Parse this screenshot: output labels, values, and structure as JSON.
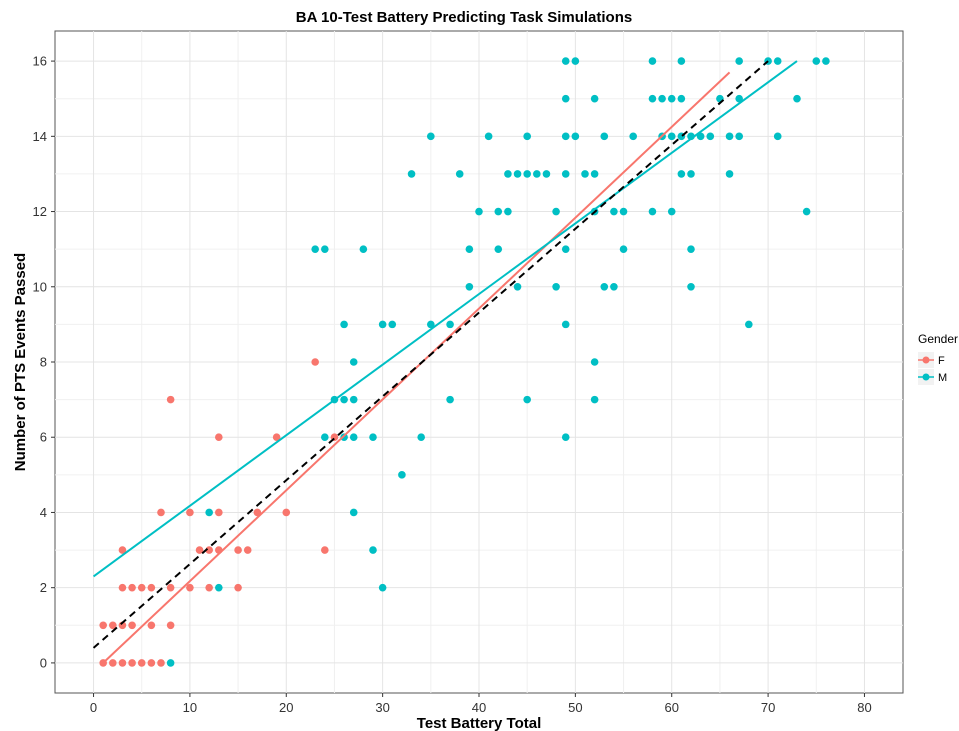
{
  "chart_data": {
    "type": "scatter",
    "title": "BA 10-Test Battery Predicting Task Simulations",
    "xlabel": "Test Battery Total",
    "ylabel": "Number of PTS Events Passed",
    "xlim": [
      -4,
      84
    ],
    "ylim": [
      -0.8,
      16.8
    ],
    "x_ticks": [
      0,
      10,
      20,
      30,
      40,
      50,
      60,
      70,
      80
    ],
    "y_ticks": [
      0,
      2,
      4,
      6,
      8,
      10,
      12,
      14,
      16
    ],
    "grid": true,
    "legend": {
      "title": "Gender",
      "position": "right"
    },
    "series": [
      {
        "name": "F",
        "color": "#F8766D",
        "points": [
          [
            1,
            0
          ],
          [
            2,
            0
          ],
          [
            3,
            0
          ],
          [
            4,
            0
          ],
          [
            5,
            0
          ],
          [
            6,
            0
          ],
          [
            7,
            0
          ],
          [
            1,
            1
          ],
          [
            2,
            1
          ],
          [
            3,
            1
          ],
          [
            4,
            1
          ],
          [
            6,
            1
          ],
          [
            8,
            1
          ],
          [
            3,
            2
          ],
          [
            4,
            2
          ],
          [
            5,
            2
          ],
          [
            6,
            2
          ],
          [
            8,
            2
          ],
          [
            10,
            2
          ],
          [
            12,
            2
          ],
          [
            15,
            2
          ],
          [
            3,
            3
          ],
          [
            11,
            3
          ],
          [
            12,
            3
          ],
          [
            13,
            3
          ],
          [
            15,
            3
          ],
          [
            16,
            3
          ],
          [
            24,
            3
          ],
          [
            7,
            4
          ],
          [
            10,
            4
          ],
          [
            13,
            4
          ],
          [
            17,
            4
          ],
          [
            20,
            4
          ],
          [
            13,
            6
          ],
          [
            19,
            6
          ],
          [
            25,
            6
          ],
          [
            8,
            7
          ],
          [
            23,
            8
          ]
        ],
        "fit_line": [
          [
            1,
            0
          ],
          [
            66,
            15.7
          ]
        ]
      },
      {
        "name": "M",
        "color": "#00BFC4",
        "points": [
          [
            8,
            0
          ],
          [
            13,
            2
          ],
          [
            30,
            2
          ],
          [
            29,
            3
          ],
          [
            12,
            4
          ],
          [
            27,
            4
          ],
          [
            32,
            5
          ],
          [
            24,
            6
          ],
          [
            26,
            6
          ],
          [
            27,
            6
          ],
          [
            29,
            6
          ],
          [
            34,
            6
          ],
          [
            49,
            6
          ],
          [
            25,
            7
          ],
          [
            26,
            7
          ],
          [
            27,
            7
          ],
          [
            37,
            7
          ],
          [
            45,
            7
          ],
          [
            52,
            7
          ],
          [
            27,
            8
          ],
          [
            52,
            8
          ],
          [
            26,
            9
          ],
          [
            30,
            9
          ],
          [
            31,
            9
          ],
          [
            35,
            9
          ],
          [
            37,
            9
          ],
          [
            49,
            9
          ],
          [
            68,
            9
          ],
          [
            39,
            10
          ],
          [
            44,
            10
          ],
          [
            48,
            10
          ],
          [
            53,
            10
          ],
          [
            54,
            10
          ],
          [
            62,
            10
          ],
          [
            23,
            11
          ],
          [
            24,
            11
          ],
          [
            28,
            11
          ],
          [
            39,
            11
          ],
          [
            42,
            11
          ],
          [
            49,
            11
          ],
          [
            55,
            11
          ],
          [
            62,
            11
          ],
          [
            40,
            12
          ],
          [
            42,
            12
          ],
          [
            43,
            12
          ],
          [
            48,
            12
          ],
          [
            52,
            12
          ],
          [
            54,
            12
          ],
          [
            55,
            12
          ],
          [
            58,
            12
          ],
          [
            60,
            12
          ],
          [
            74,
            12
          ],
          [
            33,
            13
          ],
          [
            38,
            13
          ],
          [
            43,
            13
          ],
          [
            44,
            13
          ],
          [
            45,
            13
          ],
          [
            46,
            13
          ],
          [
            47,
            13
          ],
          [
            49,
            13
          ],
          [
            51,
            13
          ],
          [
            52,
            13
          ],
          [
            61,
            13
          ],
          [
            62,
            13
          ],
          [
            66,
            13
          ],
          [
            35,
            14
          ],
          [
            41,
            14
          ],
          [
            45,
            14
          ],
          [
            49,
            14
          ],
          [
            50,
            14
          ],
          [
            53,
            14
          ],
          [
            56,
            14
          ],
          [
            59,
            14
          ],
          [
            60,
            14
          ],
          [
            61,
            14
          ],
          [
            62,
            14
          ],
          [
            63,
            14
          ],
          [
            64,
            14
          ],
          [
            66,
            14
          ],
          [
            67,
            14
          ],
          [
            71,
            14
          ],
          [
            49,
            15
          ],
          [
            52,
            15
          ],
          [
            58,
            15
          ],
          [
            59,
            15
          ],
          [
            60,
            15
          ],
          [
            61,
            15
          ],
          [
            65,
            15
          ],
          [
            67,
            15
          ],
          [
            73,
            15
          ],
          [
            49,
            16
          ],
          [
            50,
            16
          ],
          [
            58,
            16
          ],
          [
            61,
            16
          ],
          [
            67,
            16
          ],
          [
            70,
            16
          ],
          [
            71,
            16
          ],
          [
            75,
            16
          ],
          [
            76,
            16
          ]
        ],
        "fit_line": [
          [
            0,
            2.3
          ],
          [
            73,
            16
          ]
        ]
      }
    ],
    "overall_fit": {
      "style": "dashed",
      "color": "#000000",
      "line": [
        [
          0,
          0.4
        ],
        [
          70,
          16
        ]
      ]
    }
  }
}
